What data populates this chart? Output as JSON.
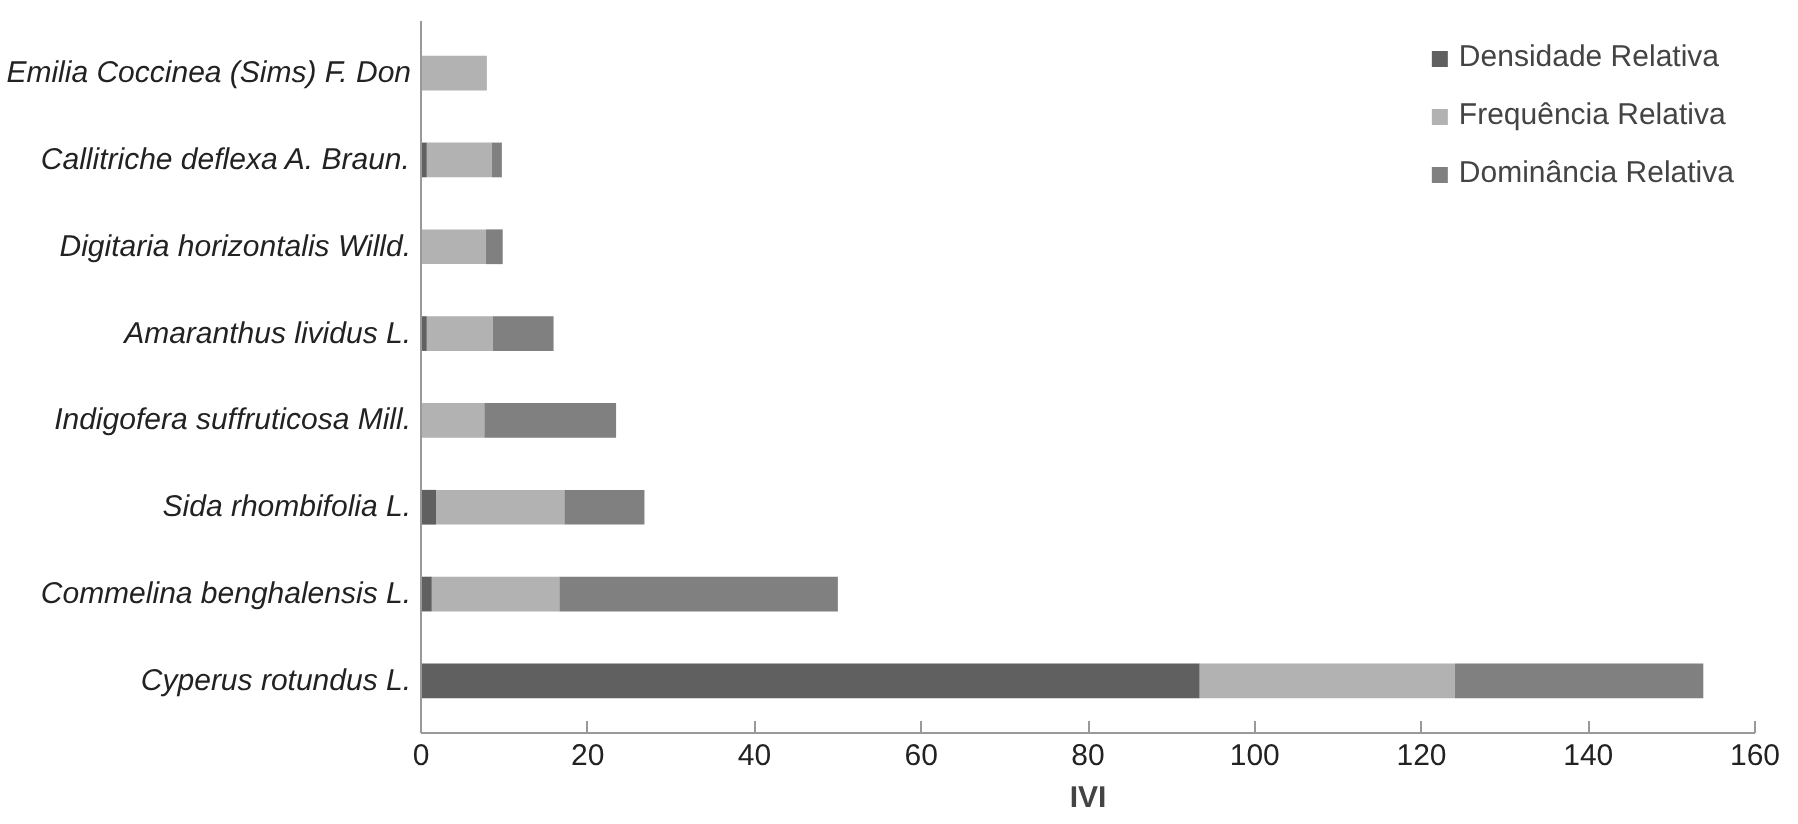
{
  "chart_data": {
    "type": "bar",
    "orientation": "horizontal",
    "stacked": true,
    "xlabel": "IVI",
    "categories": [
      "Emilia Coccinea (Sims) F. Don",
      "Callitriche deflexa A. Braun.",
      "Digitaria horizontalis Willd.",
      "Amaranthus lividus L.",
      "Indigofera suffruticosa Mill.",
      "Sida rhombifolia L.",
      "Commelina benghalensis L.",
      "Cyperus rotundus L."
    ],
    "series": [
      {
        "name": "Densidade Relativa",
        "color": "#606060",
        "values": [
          null,
          0.7,
          null,
          0.7,
          null,
          1.8,
          1.3,
          93.4
        ]
      },
      {
        "name": "Frequência Relativa",
        "color": "#b2b2b2",
        "values": [
          7.9,
          7.8,
          7.8,
          7.9,
          7.6,
          15.4,
          15.3,
          30.6
        ]
      },
      {
        "name": "Dominância Relativa",
        "color": "#808080",
        "values": [
          null,
          1.2,
          2.0,
          7.3,
          15.8,
          9.6,
          33.4,
          29.8
        ]
      }
    ],
    "xlim": [
      0,
      160
    ],
    "xticks": [
      0,
      20,
      40,
      60,
      80,
      100,
      120,
      140,
      160
    ],
    "grid": false,
    "legend": "top right"
  }
}
